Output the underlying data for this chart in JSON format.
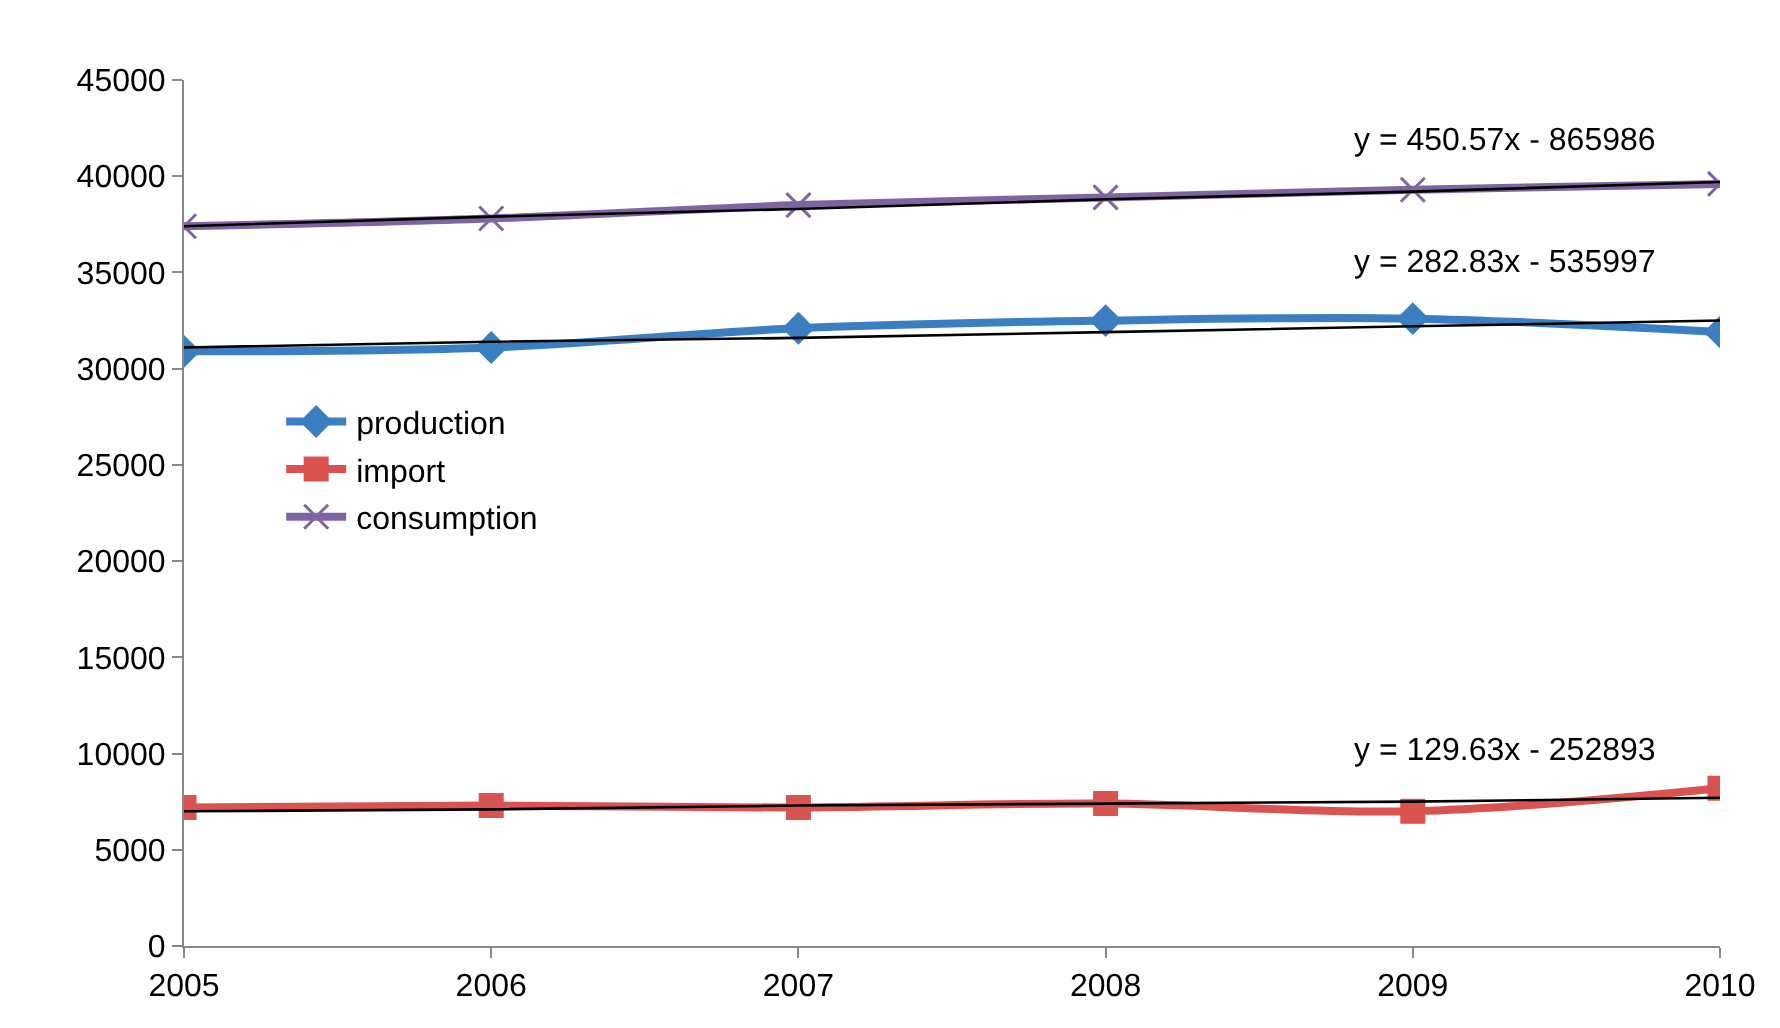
{
  "chart_data": {
    "type": "line",
    "x": [
      2005,
      2006,
      2007,
      2008,
      2009,
      2010
    ],
    "series": [
      {
        "name": "production",
        "color": "#3a7fc1",
        "marker": "diamond",
        "values": [
          30900,
          31100,
          32100,
          32500,
          32600,
          31900
        ]
      },
      {
        "name": "import",
        "color": "#d9534f",
        "marker": "square",
        "values": [
          7200,
          7300,
          7200,
          7400,
          7000,
          8200
        ]
      },
      {
        "name": "consumption",
        "color": "#8064a2",
        "marker": "cross",
        "values": [
          37400,
          37800,
          38500,
          38900,
          39300,
          39600
        ]
      },
      {
        "type": "line",
        "color": "#000000",
        "marker": "none",
        "values": [
          31100,
          31400,
          31600,
          31900,
          32200,
          32500
        ]
      },
      {
        "type": "line",
        "color": "#000000",
        "marker": "none",
        "values": [
          7000,
          7100,
          7300,
          7400,
          7500,
          7700
        ]
      },
      {
        "type": "line",
        "color": "#000000",
        "marker": "none",
        "values": [
          37400,
          37900,
          38300,
          38800,
          39200,
          39700
        ]
      }
    ],
    "annotations": [
      "y = 450.57x - 865986",
      "y = 282.83x - 535997",
      "y = 129.63x - 252893"
    ],
    "xlim": [
      2005,
      2010
    ],
    "xticks": [
      2005,
      2006,
      2007,
      2008,
      2009,
      2010
    ],
    "ylim": [
      0,
      45000
    ],
    "yticks": [
      0,
      5000,
      10000,
      15000,
      20000,
      25000,
      30000,
      35000,
      40000,
      45000
    ],
    "legend": "left"
  }
}
